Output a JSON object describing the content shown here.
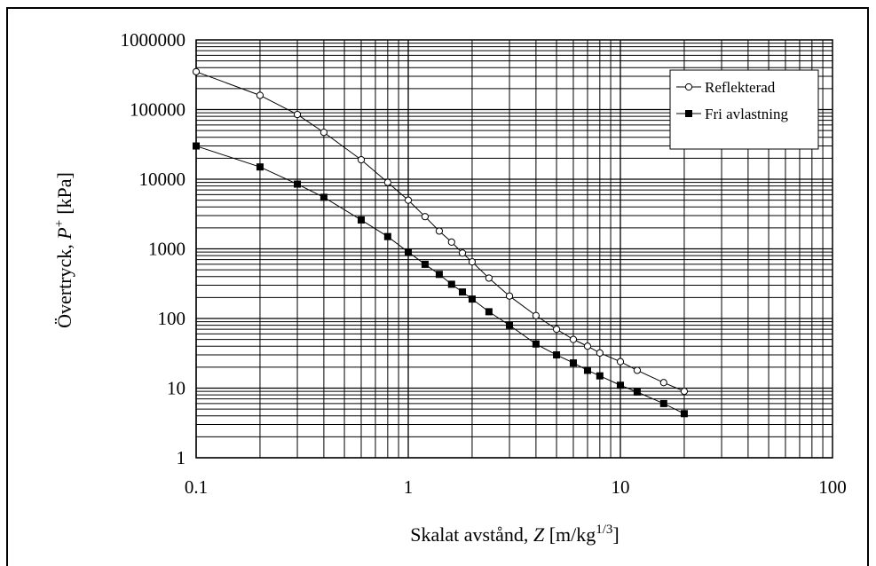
{
  "chart_data": {
    "type": "line",
    "xscale": "log",
    "yscale": "log",
    "xlim": [
      0.1,
      100
    ],
    "ylim": [
      1,
      1000000
    ],
    "grid": true,
    "legend_position": "top-right",
    "xlabel": {
      "main": "Skalat avstånd, ",
      "italic": "Z",
      "unit_open": " [m/kg",
      "unit_sup": "1/3",
      "unit_close": "]"
    },
    "ylabel": {
      "main": "Övertryck, ",
      "italic": "P",
      "sup": "+",
      "unit": "[kPa]"
    },
    "x_tick_labels": [
      "0.1",
      "1",
      "10",
      "100"
    ],
    "y_tick_labels": [
      "1",
      "10",
      "100",
      "1000",
      "10000",
      "100000",
      "1000000"
    ],
    "series": [
      {
        "name": "Reflekterad",
        "marker": "open-circle",
        "color": "#000000",
        "x": [
          0.1,
          0.2,
          0.3,
          0.4,
          0.6,
          0.8,
          1.0,
          1.2,
          1.4,
          1.6,
          1.8,
          2.0,
          2.4,
          3.0,
          4.0,
          5.0,
          6.0,
          7.0,
          8.0,
          10.0,
          12.0,
          16.0,
          20.0
        ],
        "y": [
          350000,
          160000,
          85000,
          47000,
          19000,
          9000,
          5000,
          2900,
          1800,
          1250,
          870,
          650,
          380,
          210,
          110,
          70,
          50,
          40,
          32,
          24,
          18,
          12,
          9
        ]
      },
      {
        "name": "Fri avlastning",
        "marker": "filled-square",
        "color": "#000000",
        "x": [
          0.1,
          0.2,
          0.3,
          0.4,
          0.6,
          0.8,
          1.0,
          1.2,
          1.4,
          1.6,
          1.8,
          2.0,
          2.4,
          3.0,
          4.0,
          5.0,
          6.0,
          7.0,
          8.0,
          10.0,
          12.0,
          16.0,
          20.0
        ],
        "y": [
          30000,
          15000,
          8500,
          5500,
          2600,
          1500,
          900,
          600,
          430,
          310,
          240,
          190,
          125,
          80,
          43,
          30,
          23,
          18,
          15,
          11,
          8.8,
          6,
          4.3
        ]
      }
    ]
  }
}
